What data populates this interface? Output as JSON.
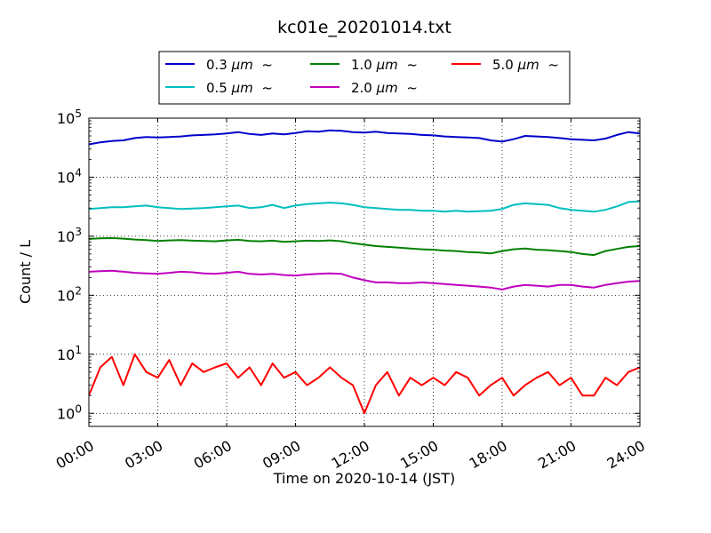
{
  "chart_data": {
    "type": "line",
    "title": "kc01e_20201014.txt",
    "xlabel": "Time on 2020-10-14 (JST)",
    "ylabel": "Count / L",
    "y_scale": "log",
    "ylim": [
      0.6,
      100000
    ],
    "xlim": [
      "00:00",
      "24:00"
    ],
    "x_ticks": [
      "00:00",
      "03:00",
      "06:00",
      "09:00",
      "12:00",
      "15:00",
      "18:00",
      "21:00",
      "24:00"
    ],
    "y_ticks": [
      {
        "value": 1,
        "base": "10",
        "exp": "0"
      },
      {
        "value": 10,
        "base": "10",
        "exp": "1"
      },
      {
        "value": 100,
        "base": "10",
        "exp": "2"
      },
      {
        "value": 1000,
        "base": "10",
        "exp": "3"
      },
      {
        "value": 10000,
        "base": "10",
        "exp": "4"
      },
      {
        "value": 100000,
        "base": "10",
        "exp": "5"
      }
    ],
    "grid": true,
    "legend": "top-center, above plot",
    "x": [
      "00:00",
      "00:30",
      "01:00",
      "01:30",
      "02:00",
      "02:30",
      "03:00",
      "03:30",
      "04:00",
      "04:30",
      "05:00",
      "05:30",
      "06:00",
      "06:30",
      "07:00",
      "07:30",
      "08:00",
      "08:30",
      "09:00",
      "09:30",
      "10:00",
      "10:30",
      "11:00",
      "11:30",
      "12:00",
      "12:30",
      "13:00",
      "13:30",
      "14:00",
      "14:30",
      "15:00",
      "15:30",
      "16:00",
      "16:30",
      "17:00",
      "17:30",
      "18:00",
      "18:30",
      "19:00",
      "19:30",
      "20:00",
      "20:30",
      "21:00",
      "21:30",
      "22:00",
      "22:30",
      "23:00",
      "23:30",
      "24:00"
    ],
    "series": [
      {
        "name": "0.3 μm ~",
        "label_main": "0.3 ",
        "label_unit": "μm",
        "label_tail": " ~",
        "color": "#0000cc",
        "values": [
          36000,
          39000,
          41000,
          42000,
          46000,
          48000,
          47000,
          48000,
          49000,
          51000,
          52000,
          53000,
          55000,
          58000,
          54000,
          52000,
          55000,
          53000,
          56000,
          60000,
          59000,
          62000,
          61000,
          58000,
          57000,
          59000,
          56000,
          55000,
          54000,
          52000,
          51000,
          49000,
          48000,
          47000,
          46000,
          42000,
          40000,
          44000,
          50000,
          49000,
          48000,
          46000,
          44000,
          43000,
          42000,
          45000,
          52000,
          58000,
          55000
        ]
      },
      {
        "name": "0.5 μm ~",
        "label_main": "0.5 ",
        "label_unit": "μm",
        "label_tail": " ~",
        "color": "#00bfbf",
        "values": [
          2900,
          3000,
          3100,
          3100,
          3200,
          3300,
          3100,
          3000,
          2900,
          2950,
          3000,
          3100,
          3200,
          3300,
          3000,
          3100,
          3400,
          3000,
          3300,
          3500,
          3600,
          3700,
          3600,
          3400,
          3100,
          3000,
          2900,
          2800,
          2800,
          2700,
          2700,
          2600,
          2700,
          2600,
          2650,
          2700,
          2900,
          3400,
          3600,
          3500,
          3400,
          3000,
          2800,
          2700,
          2600,
          2800,
          3200,
          3800,
          3900
        ]
      },
      {
        "name": "1.0 μm ~",
        "label_main": "1.0 ",
        "label_unit": "μm",
        "label_tail": " ~",
        "color": "#008000",
        "values": [
          900,
          920,
          930,
          910,
          880,
          860,
          830,
          850,
          860,
          840,
          830,
          820,
          850,
          870,
          830,
          820,
          840,
          800,
          820,
          840,
          830,
          850,
          820,
          760,
          720,
          680,
          660,
          640,
          620,
          600,
          590,
          570,
          560,
          540,
          530,
          510,
          560,
          600,
          620,
          590,
          580,
          560,
          540,
          500,
          480,
          560,
          610,
          660,
          680
        ]
      },
      {
        "name": "2.0 μm ~",
        "label_main": "2.0 ",
        "label_unit": "μm",
        "label_tail": " ~",
        "color": "#bf00bf",
        "values": [
          250,
          255,
          260,
          250,
          240,
          235,
          230,
          240,
          250,
          245,
          235,
          230,
          240,
          250,
          230,
          225,
          230,
          220,
          215,
          225,
          230,
          235,
          230,
          200,
          180,
          165,
          165,
          160,
          160,
          165,
          160,
          155,
          150,
          145,
          140,
          135,
          125,
          140,
          150,
          145,
          140,
          150,
          150,
          140,
          135,
          150,
          160,
          170,
          175
        ]
      },
      {
        "name": "5.0 μm ~",
        "label_main": "5.0 ",
        "label_unit": "μm",
        "label_tail": " ~",
        "color": "#ff0000",
        "values": [
          2,
          6,
          9,
          3,
          10,
          5,
          4,
          8,
          3,
          7,
          5,
          6,
          7,
          4,
          6,
          3,
          7,
          4,
          5,
          3,
          4,
          6,
          4,
          3,
          1,
          3,
          5,
          2,
          4,
          3,
          4,
          3,
          5,
          4,
          2,
          3,
          4,
          2,
          3,
          4,
          5,
          3,
          4,
          2,
          2,
          4,
          3,
          5,
          6
        ]
      }
    ]
  }
}
